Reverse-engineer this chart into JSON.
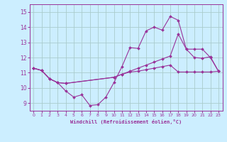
{
  "xlabel": "Windchill (Refroidissement éolien,°C)",
  "xlim": [
    -0.5,
    23.5
  ],
  "ylim": [
    8.5,
    15.5
  ],
  "yticks": [
    9,
    10,
    11,
    12,
    13,
    14,
    15
  ],
  "xticks": [
    0,
    1,
    2,
    3,
    4,
    5,
    6,
    7,
    8,
    9,
    10,
    11,
    12,
    13,
    14,
    15,
    16,
    17,
    18,
    19,
    20,
    21,
    22,
    23
  ],
  "bg_color": "#cceeff",
  "grid_color": "#aacccc",
  "line_color": "#993399",
  "line1_x": [
    0,
    1,
    2,
    3,
    4,
    5,
    6,
    7,
    8,
    9,
    10,
    11,
    12,
    13,
    14,
    15,
    16,
    17,
    18,
    19,
    20,
    21,
    22,
    23
  ],
  "line1_y": [
    11.3,
    11.15,
    10.6,
    10.35,
    9.8,
    9.4,
    9.55,
    8.85,
    8.9,
    9.4,
    10.35,
    11.4,
    12.65,
    12.6,
    13.75,
    14.0,
    13.8,
    14.7,
    14.45,
    12.55,
    12.0,
    11.95,
    12.05,
    11.1
  ],
  "line2_x": [
    0,
    1,
    2,
    3,
    4,
    10,
    11,
    12,
    13,
    14,
    15,
    16,
    17,
    18,
    19,
    20,
    21,
    22,
    23
  ],
  "line2_y": [
    11.3,
    11.15,
    10.6,
    10.35,
    10.3,
    10.7,
    10.9,
    11.1,
    11.3,
    11.5,
    11.7,
    11.9,
    12.1,
    13.55,
    12.55,
    12.55,
    12.55,
    12.0,
    11.1
  ],
  "line3_x": [
    0,
    1,
    2,
    3,
    4,
    10,
    11,
    12,
    13,
    14,
    15,
    16,
    17,
    18,
    19,
    20,
    21,
    22,
    23
  ],
  "line3_y": [
    11.3,
    11.15,
    10.6,
    10.35,
    10.3,
    10.7,
    10.9,
    11.05,
    11.1,
    11.2,
    11.3,
    11.4,
    11.5,
    11.05,
    11.05,
    11.05,
    11.05,
    11.05,
    11.1
  ]
}
